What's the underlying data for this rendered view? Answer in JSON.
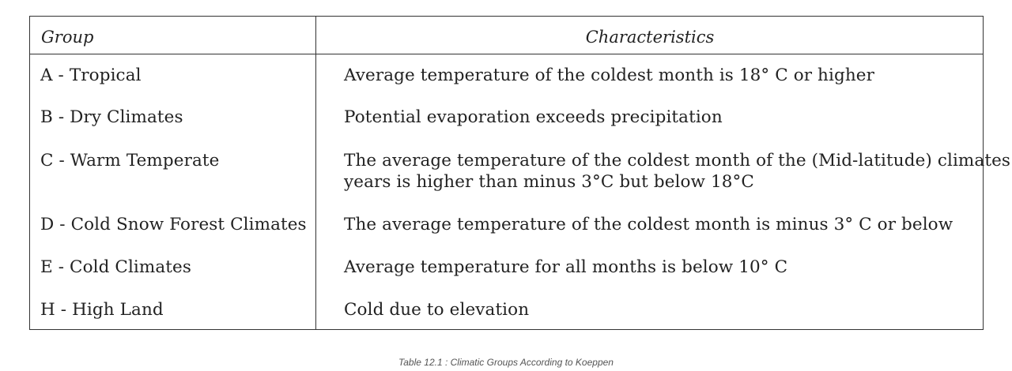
{
  "table": {
    "headers": {
      "group": "Group",
      "characteristics": "Characteristics"
    },
    "rows": [
      {
        "group": "A - Tropical",
        "characteristics": [
          "Average temperature of the coldest month is 18° C or higher"
        ]
      },
      {
        "group": "B - Dry Climates",
        "characteristics": [
          "Potential evaporation exceeds precipitation"
        ]
      },
      {
        "group": "C - Warm Temperate",
        "characteristics": [
          "The average temperature of the coldest month of the (Mid-latitude) climates",
          "years is higher than minus 3°C but below 18°C"
        ]
      },
      {
        "group": "D - Cold Snow Forest Climates",
        "characteristics": [
          "The average  temperature of the coldest month is  minus 3° C or below"
        ]
      },
      {
        "group": "E - Cold Climates",
        "characteristics": [
          "Average temperature for all months is below 10° C"
        ]
      },
      {
        "group": "H - High Land",
        "characteristics": [
          "Cold due to elevation"
        ]
      }
    ]
  },
  "caption": "Table 12.1 : Climatic Groups According to Koeppen"
}
